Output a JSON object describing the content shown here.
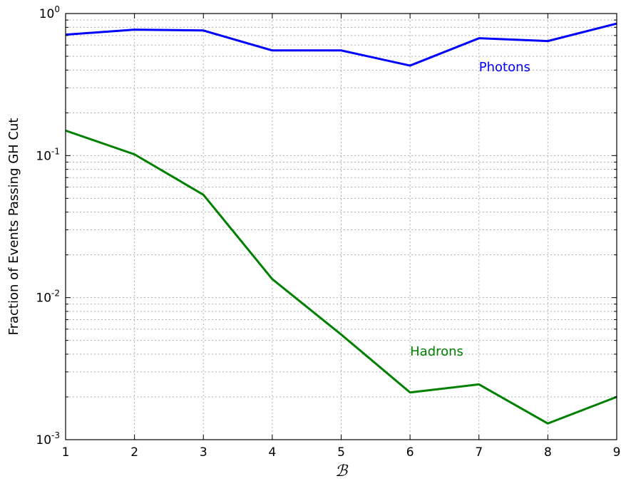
{
  "chart_data": {
    "type": "line",
    "xlabel": "ℬ",
    "ylabel": "Fraction of Events Passing GH Cut",
    "yscale": "log",
    "xlim": [
      1,
      9
    ],
    "ylim": [
      0.001,
      1
    ],
    "grid": true,
    "x_ticks": [
      "1",
      "2",
      "3",
      "4",
      "5",
      "6",
      "7",
      "8",
      "9"
    ],
    "y_ticks": [
      {
        "base": "10",
        "exp": "-3",
        "value": 0.001
      },
      {
        "base": "10",
        "exp": "-2",
        "value": 0.01
      },
      {
        "base": "10",
        "exp": "-1",
        "value": 0.1
      },
      {
        "base": "10",
        "exp": "0",
        "value": 1
      }
    ],
    "x": [
      1,
      2,
      3,
      4,
      5,
      6,
      7,
      8,
      9
    ],
    "series": [
      {
        "name": "Photons",
        "color": "#0000ff",
        "values": [
          0.71,
          0.77,
          0.76,
          0.55,
          0.55,
          0.43,
          0.67,
          0.64,
          0.85
        ],
        "label_at": [
          7,
          0.42
        ]
      },
      {
        "name": "Hadrons",
        "color": "#008000",
        "values": [
          0.15,
          0.102,
          0.053,
          0.0135,
          0.0055,
          0.00215,
          0.00245,
          0.0013,
          0.002
        ],
        "label_at": [
          6,
          0.0042
        ]
      }
    ]
  }
}
